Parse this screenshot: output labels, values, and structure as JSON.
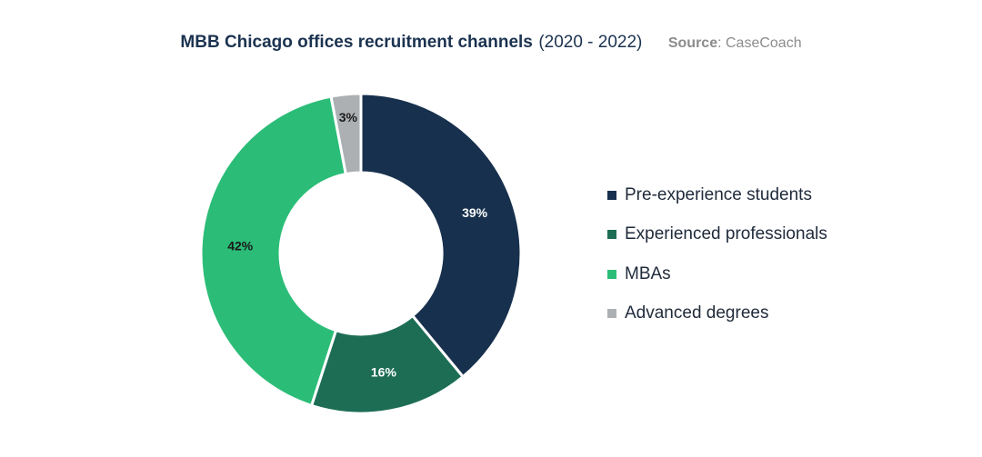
{
  "header": {
    "title": "MBB Chicago offices recruitment channels",
    "years": "(2020 - 2022)",
    "source_label": "Source",
    "source_value": ": CaseCoach"
  },
  "chart_data": {
    "type": "pie",
    "title": "MBB Chicago offices recruitment channels (2020 - 2022)",
    "source": "Source: CaseCoach",
    "donut": true,
    "categories": [
      "Pre-experience students",
      "Experienced professionals",
      "MBAs",
      "Advanced degrees"
    ],
    "values": [
      39,
      16,
      42,
      3
    ],
    "labels": [
      "39%",
      "16%",
      "42%",
      "3%"
    ],
    "unit": "%",
    "colors": [
      "#17304d",
      "#1d6d55",
      "#2bbd77",
      "#adb0b3"
    ],
    "label_colors": [
      "#ffffff",
      "#ffffff",
      "#1a1a1a",
      "#1a1a1a"
    ],
    "legend_position": "right"
  },
  "legend": {
    "items": [
      {
        "label": "Pre-experience students",
        "color": "#17304d"
      },
      {
        "label": "Experienced professionals",
        "color": "#1d6d55"
      },
      {
        "label": "MBAs",
        "color": "#2bbd77"
      },
      {
        "label": "Advanced degrees",
        "color": "#adb0b3"
      }
    ]
  }
}
